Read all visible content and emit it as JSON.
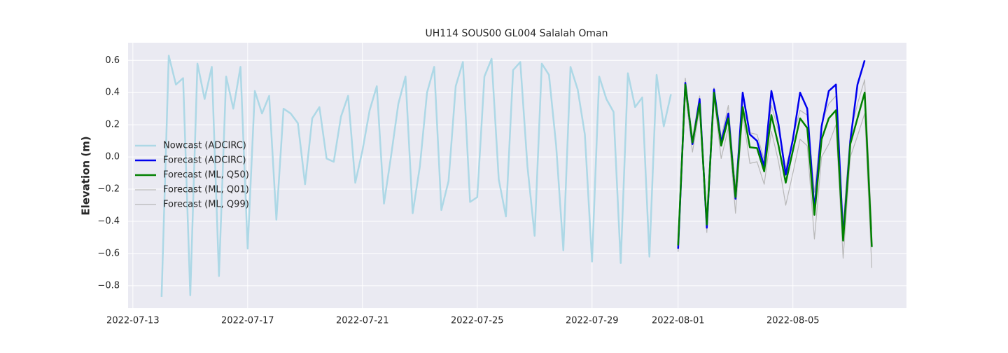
{
  "chart_data": {
    "type": "line",
    "title": "UH114 SOUS00 GL004 Salalah Oman",
    "y_label": "Elevation (m)",
    "xlim": [
      "2022-07-12 20:00",
      "2022-08-08 23:00"
    ],
    "xticks": [
      "2022-07-13",
      "2022-07-17",
      "2022-07-21",
      "2022-07-25",
      "2022-07-29",
      "2022-08-01",
      "2022-08-05"
    ],
    "ylim": [
      -0.94,
      0.71
    ],
    "yticks": [
      {
        "value": -0.8,
        "label": "−0.8"
      },
      {
        "value": -0.6,
        "label": "−0.6"
      },
      {
        "value": -0.4,
        "label": "−0.4"
      },
      {
        "value": -0.2,
        "label": "−0.2"
      },
      {
        "value": 0,
        "label": "0.0"
      },
      0.2,
      0.4,
      0.6
    ],
    "grid": true,
    "legend": "center left",
    "series": [
      {
        "name": "Nowcast (ADCIRC)",
        "color": "#add8e6",
        "width": 2.5,
        "x": [
          "2022-07-14 00:00",
          "2022-07-14 06:00",
          "2022-07-14 12:00",
          "2022-07-14 18:00",
          "2022-07-15 00:00",
          "2022-07-15 06:00",
          "2022-07-15 12:00",
          "2022-07-15 18:00",
          "2022-07-16 00:00",
          "2022-07-16 06:00",
          "2022-07-16 12:00",
          "2022-07-16 18:00",
          "2022-07-17 00:00",
          "2022-07-17 06:00",
          "2022-07-17 12:00",
          "2022-07-17 18:00",
          "2022-07-18 00:00",
          "2022-07-18 06:00",
          "2022-07-18 12:00",
          "2022-07-18 18:00",
          "2022-07-19 00:00",
          "2022-07-19 06:00",
          "2022-07-19 12:00",
          "2022-07-19 18:00",
          "2022-07-20 00:00",
          "2022-07-20 06:00",
          "2022-07-20 12:00",
          "2022-07-20 18:00",
          "2022-07-21 00:00",
          "2022-07-21 06:00",
          "2022-07-21 12:00",
          "2022-07-21 18:00",
          "2022-07-22 00:00",
          "2022-07-22 06:00",
          "2022-07-22 12:00",
          "2022-07-22 18:00",
          "2022-07-23 00:00",
          "2022-07-23 06:00",
          "2022-07-23 12:00",
          "2022-07-23 18:00",
          "2022-07-24 00:00",
          "2022-07-24 06:00",
          "2022-07-24 12:00",
          "2022-07-24 18:00",
          "2022-07-25 00:00",
          "2022-07-25 06:00",
          "2022-07-25 12:00",
          "2022-07-25 18:00",
          "2022-07-26 00:00",
          "2022-07-26 06:00",
          "2022-07-26 12:00",
          "2022-07-26 18:00",
          "2022-07-27 00:00",
          "2022-07-27 06:00",
          "2022-07-27 12:00",
          "2022-07-27 18:00",
          "2022-07-28 00:00",
          "2022-07-28 06:00",
          "2022-07-28 12:00",
          "2022-07-28 18:00",
          "2022-07-29 00:00",
          "2022-07-29 06:00",
          "2022-07-29 12:00",
          "2022-07-29 18:00",
          "2022-07-30 00:00",
          "2022-07-30 06:00",
          "2022-07-30 12:00",
          "2022-07-30 18:00",
          "2022-07-31 00:00",
          "2022-07-31 06:00",
          "2022-07-31 12:00",
          "2022-07-31 18:00"
        ],
        "values": [
          -0.87,
          0.63,
          0.45,
          0.49,
          -0.86,
          0.58,
          0.36,
          0.56,
          -0.74,
          0.5,
          0.3,
          0.56,
          -0.57,
          0.41,
          0.27,
          0.38,
          -0.39,
          0.3,
          0.27,
          0.21,
          -0.17,
          0.24,
          0.31,
          -0.01,
          -0.03,
          0.25,
          0.38,
          -0.16,
          0.04,
          0.29,
          0.44,
          -0.29,
          0.01,
          0.33,
          0.5,
          -0.35,
          -0.06,
          0.4,
          0.56,
          -0.33,
          -0.15,
          0.44,
          0.59,
          -0.28,
          -0.25,
          0.5,
          0.61,
          -0.14,
          -0.37,
          0.54,
          0.59,
          -0.06,
          -0.49,
          0.58,
          0.51,
          0.07,
          -0.58,
          0.56,
          0.42,
          0.14,
          -0.65,
          0.5,
          0.36,
          0.28,
          -0.66,
          0.52,
          0.31,
          0.37,
          -0.62,
          0.51,
          0.19,
          0.39
        ]
      },
      {
        "name": "Forecast (ADCIRC)",
        "color": "#0000ee",
        "width": 2.5,
        "x": [
          "2022-08-01 00:00",
          "2022-08-01 06:00",
          "2022-08-01 12:00",
          "2022-08-01 18:00",
          "2022-08-02 00:00",
          "2022-08-02 06:00",
          "2022-08-02 12:00",
          "2022-08-02 18:00",
          "2022-08-03 00:00",
          "2022-08-03 06:00",
          "2022-08-03 12:00",
          "2022-08-03 18:00",
          "2022-08-04 00:00",
          "2022-08-04 06:00",
          "2022-08-04 12:00",
          "2022-08-04 18:00",
          "2022-08-05 00:00",
          "2022-08-05 06:00",
          "2022-08-05 12:00",
          "2022-08-05 18:00",
          "2022-08-06 00:00",
          "2022-08-06 06:00",
          "2022-08-06 12:00",
          "2022-08-06 18:00",
          "2022-08-07 00:00",
          "2022-08-07 06:00",
          "2022-08-07 12:00"
        ],
        "values": [
          -0.57,
          0.46,
          0.08,
          0.36,
          -0.44,
          0.42,
          0.09,
          0.27,
          -0.26,
          0.4,
          0.14,
          0.1,
          -0.06,
          0.41,
          0.2,
          -0.11,
          0.11,
          0.4,
          0.3,
          -0.33,
          0.19,
          0.41,
          0.45,
          -0.5,
          0.1,
          0.45,
          0.6
        ]
      },
      {
        "name": "Forecast (ML, Q50)",
        "color": "#008000",
        "width": 2.5,
        "x": [
          "2022-08-01 00:00",
          "2022-08-01 06:00",
          "2022-08-01 12:00",
          "2022-08-01 18:00",
          "2022-08-02 00:00",
          "2022-08-02 06:00",
          "2022-08-02 12:00",
          "2022-08-02 18:00",
          "2022-08-03 00:00",
          "2022-08-03 06:00",
          "2022-08-03 12:00",
          "2022-08-03 18:00",
          "2022-08-04 00:00",
          "2022-08-04 06:00",
          "2022-08-04 12:00",
          "2022-08-04 18:00",
          "2022-08-05 00:00",
          "2022-08-05 06:00",
          "2022-08-05 12:00",
          "2022-08-05 18:00",
          "2022-08-06 00:00",
          "2022-08-06 06:00",
          "2022-08-06 12:00",
          "2022-08-06 18:00",
          "2022-08-07 00:00",
          "2022-08-07 06:00",
          "2022-08-07 12:00",
          "2022-08-07 18:00"
        ],
        "values": [
          -0.55,
          0.45,
          0.09,
          0.33,
          -0.42,
          0.4,
          0.07,
          0.24,
          -0.25,
          0.31,
          0.06,
          0.055,
          -0.09,
          0.26,
          0.07,
          -0.16,
          0.04,
          0.24,
          0.18,
          -0.36,
          0.11,
          0.24,
          0.29,
          -0.52,
          0.08,
          0.24,
          0.4,
          -0.56
        ]
      },
      {
        "name": "Forecast (ML, Q01)",
        "color": "#b8b8b8",
        "width": 1.2,
        "x": [
          "2022-08-01 00:00",
          "2022-08-01 06:00",
          "2022-08-01 12:00",
          "2022-08-01 18:00",
          "2022-08-02 00:00",
          "2022-08-02 06:00",
          "2022-08-02 12:00",
          "2022-08-02 18:00",
          "2022-08-03 00:00",
          "2022-08-03 06:00",
          "2022-08-03 12:00",
          "2022-08-03 18:00",
          "2022-08-04 00:00",
          "2022-08-04 06:00",
          "2022-08-04 12:00",
          "2022-08-04 18:00",
          "2022-08-05 00:00",
          "2022-08-05 06:00",
          "2022-08-05 12:00",
          "2022-08-05 18:00",
          "2022-08-06 00:00",
          "2022-08-06 06:00",
          "2022-08-06 12:00",
          "2022-08-06 18:00",
          "2022-08-07 00:00",
          "2022-08-07 06:00",
          "2022-08-07 12:00",
          "2022-08-07 18:00"
        ],
        "values": [
          -0.59,
          0.4,
          0.03,
          0.3,
          -0.47,
          0.37,
          -0.01,
          0.18,
          -0.35,
          0.27,
          -0.04,
          -0.03,
          -0.17,
          0.16,
          -0.03,
          -0.3,
          -0.1,
          0.11,
          0.07,
          -0.51,
          0,
          0.08,
          0.2,
          -0.63,
          0,
          0.13,
          0.27,
          -0.69
        ]
      },
      {
        "name": "Forecast (ML, Q99)",
        "color": "#b8b8b8",
        "width": 1.2,
        "x": [
          "2022-08-01 00:00",
          "2022-08-01 06:00",
          "2022-08-01 12:00",
          "2022-08-01 18:00",
          "2022-08-02 00:00",
          "2022-08-02 06:00",
          "2022-08-02 12:00",
          "2022-08-02 18:00",
          "2022-08-03 00:00",
          "2022-08-03 06:00",
          "2022-08-03 12:00",
          "2022-08-03 18:00",
          "2022-08-04 00:00",
          "2022-08-04 06:00",
          "2022-08-04 12:00",
          "2022-08-04 18:00",
          "2022-08-05 00:00",
          "2022-08-05 06:00",
          "2022-08-05 12:00",
          "2022-08-05 18:00",
          "2022-08-06 00:00",
          "2022-08-06 06:00",
          "2022-08-06 12:00",
          "2022-08-06 18:00",
          "2022-08-07 00:00",
          "2022-08-07 06:00",
          "2022-08-07 12:00",
          "2022-08-07 18:00"
        ],
        "values": [
          -0.52,
          0.49,
          0.12,
          0.38,
          -0.37,
          0.43,
          0.12,
          0.32,
          -0.19,
          0.37,
          0.15,
          0.14,
          -0.02,
          0.32,
          0.16,
          -0.07,
          0.12,
          0.29,
          0.26,
          -0.22,
          0.21,
          0.33,
          0.38,
          -0.41,
          0.14,
          0.33,
          0.48,
          -0.45
        ]
      }
    ]
  }
}
